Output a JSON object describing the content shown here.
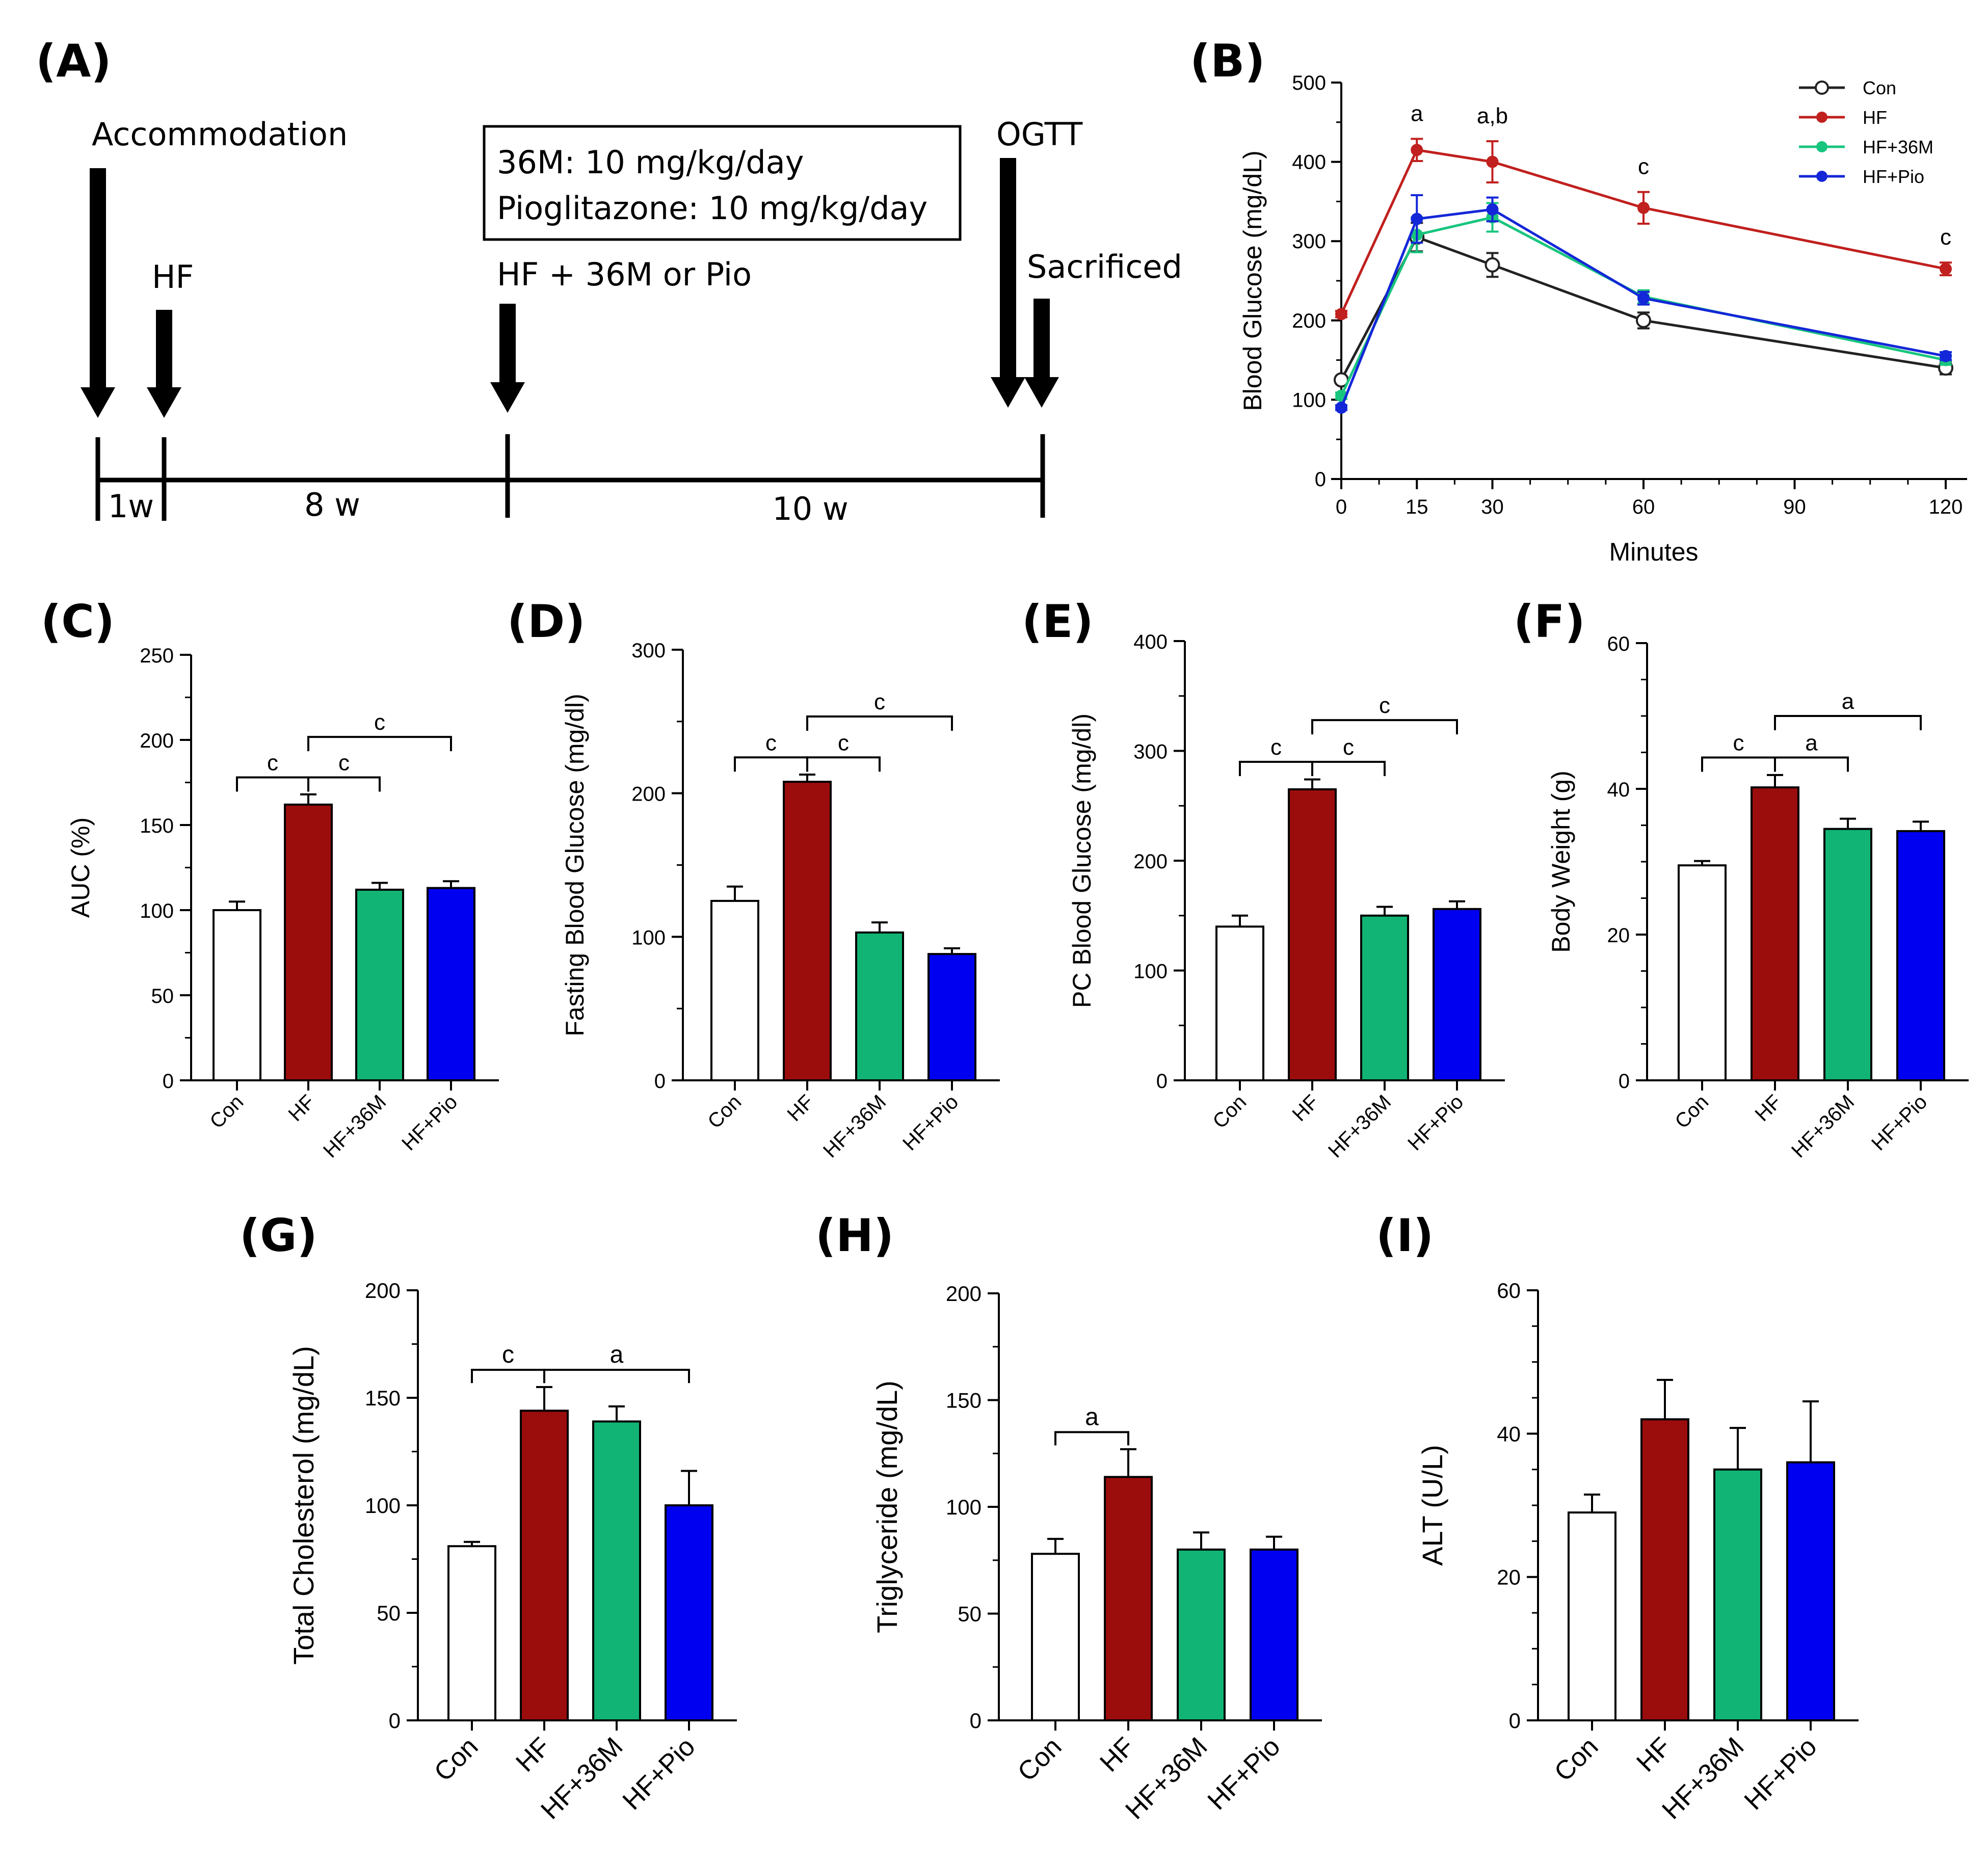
{
  "colors": {
    "con": "#ffffff",
    "hf": "#9b0d0d",
    "hf36m": "#11b474",
    "hfpio": "#0000f0",
    "line_con": "#222222",
    "line_hf": "#c0201e",
    "line_hf36m": "#18c57e",
    "line_hfpio": "#1427d8"
  },
  "panelA": {
    "label": "(A)",
    "events": {
      "accommodation": "Accommodation",
      "hf": "HF",
      "treatment": "HF + 36M or Pio",
      "ogtt": "OGTT",
      "sacrificed": "Sacrificed"
    },
    "box": {
      "line1": "36M: 10 mg/kg/day",
      "line2": "Pioglitazone: 10 mg/kg/day"
    },
    "durations": {
      "d1": "1w",
      "d2": "8 w",
      "d3": "10 w"
    }
  },
  "chart_data": [
    {
      "panel": "B",
      "label": "(B)",
      "type": "line",
      "xlabel": "Minutes",
      "ylabel": "Blood Glucose (mg/dL)",
      "x": [
        0,
        15,
        30,
        60,
        120
      ],
      "xticks": [
        "0",
        "15",
        "30",
        "60",
        "90",
        "120"
      ],
      "xtick_values": [
        0,
        15,
        30,
        60,
        90,
        120
      ],
      "xlim": [
        0,
        120
      ],
      "ylim": [
        0,
        500
      ],
      "yticks": [
        "0",
        "100",
        "200",
        "300",
        "400",
        "500"
      ],
      "series": [
        {
          "name": "Con",
          "values": [
            125,
            305,
            270,
            200,
            140
          ],
          "errors": [
            5,
            18,
            15,
            10,
            8
          ],
          "marker": "open"
        },
        {
          "name": "HF",
          "values": [
            208,
            415,
            400,
            342,
            265
          ],
          "errors": [
            4,
            14,
            26,
            20,
            8
          ],
          "marker": "filled"
        },
        {
          "name": "HF+36M",
          "values": [
            105,
            308,
            330,
            230,
            150
          ],
          "errors": [
            4,
            22,
            18,
            8,
            6
          ],
          "marker": "filled"
        },
        {
          "name": "HF+Pio",
          "values": [
            90,
            328,
            340,
            228,
            155
          ],
          "errors": [
            3,
            30,
            15,
            8,
            5
          ],
          "marker": "filled"
        }
      ],
      "annotations": [
        {
          "x": 15,
          "text": "a"
        },
        {
          "x": 30,
          "text": "a,b"
        },
        {
          "x": 60,
          "text": "c"
        },
        {
          "x": 120,
          "text": "c"
        }
      ],
      "legend_position": "top-right"
    },
    {
      "panel": "C",
      "label": "(C)",
      "type": "bar",
      "categories": [
        "Con",
        "HF",
        "HF+36M",
        "HF+Pio"
      ],
      "values": [
        100,
        162,
        112,
        113
      ],
      "errors": [
        5,
        6,
        4,
        4
      ],
      "ylabel": "AUC (%)",
      "ylim": [
        0,
        250
      ],
      "yticks": [
        "0",
        "50",
        "100",
        "150",
        "200",
        "250"
      ],
      "significance": [
        {
          "from": 0,
          "to": 1,
          "text": "c",
          "level": 1
        },
        {
          "from": 1,
          "to": 2,
          "text": "c",
          "level": 1
        },
        {
          "from": 1,
          "to": 3,
          "text": "c",
          "level": 2
        }
      ]
    },
    {
      "panel": "D",
      "label": "(D)",
      "type": "bar",
      "categories": [
        "Con",
        "HF",
        "HF+36M",
        "HF+Pio"
      ],
      "values": [
        125,
        208,
        103,
        88
      ],
      "errors": [
        10,
        5,
        7,
        4
      ],
      "ylabel": "Fasting Blood Glucose (mg/dl)",
      "ylim": [
        0,
        300
      ],
      "yticks": [
        "0",
        "100",
        "200",
        "300"
      ],
      "significance": [
        {
          "from": 0,
          "to": 1,
          "text": "c",
          "level": 1
        },
        {
          "from": 1,
          "to": 2,
          "text": "c",
          "level": 1
        },
        {
          "from": 1,
          "to": 3,
          "text": "c",
          "level": 2
        }
      ]
    },
    {
      "panel": "E",
      "label": "(E)",
      "type": "bar",
      "categories": [
        "Con",
        "HF",
        "HF+36M",
        "HF+Pio"
      ],
      "values": [
        140,
        265,
        150,
        156
      ],
      "errors": [
        10,
        9,
        8,
        7
      ],
      "ylabel": "PC Blood Glucose (mg/dl)",
      "ylim": [
        0,
        400
      ],
      "yticks": [
        "0",
        "100",
        "200",
        "300",
        "400"
      ],
      "significance": [
        {
          "from": 0,
          "to": 1,
          "text": "c",
          "level": 1
        },
        {
          "from": 1,
          "to": 2,
          "text": "c",
          "level": 1
        },
        {
          "from": 1,
          "to": 3,
          "text": "c",
          "level": 2
        }
      ]
    },
    {
      "panel": "F",
      "label": "(F)",
      "type": "bar",
      "categories": [
        "Con",
        "HF",
        "HF+36M",
        "HF+Pio"
      ],
      "values": [
        29.5,
        40.2,
        34.5,
        34.2
      ],
      "errors": [
        0.6,
        1.7,
        1.4,
        1.3
      ],
      "ylabel": "Body Weight (g)",
      "ylim": [
        0,
        60
      ],
      "yticks": [
        "0",
        "20",
        "40",
        "60"
      ],
      "significance": [
        {
          "from": 0,
          "to": 1,
          "text": "c",
          "level": 1
        },
        {
          "from": 1,
          "to": 2,
          "text": "a",
          "level": 1
        },
        {
          "from": 1,
          "to": 3,
          "text": "a",
          "level": 2
        }
      ]
    },
    {
      "panel": "G",
      "label": "(G)",
      "type": "bar",
      "categories": [
        "Con",
        "HF",
        "HF+36M",
        "HF+Pio"
      ],
      "values": [
        81,
        144,
        139,
        100
      ],
      "errors": [
        2,
        11,
        7,
        16
      ],
      "ylabel": "Total Cholesterol (mg/dL)",
      "ylim": [
        0,
        200
      ],
      "yticks": [
        "0",
        "50",
        "100",
        "150",
        "200"
      ],
      "significance": [
        {
          "from": 0,
          "to": 1,
          "text": "c",
          "level": 1
        },
        {
          "from": 1,
          "to": 3,
          "text": "a",
          "level": 1
        }
      ]
    },
    {
      "panel": "H",
      "label": "(H)",
      "type": "bar",
      "categories": [
        "Con",
        "HF",
        "HF+36M",
        "HF+Pio"
      ],
      "values": [
        78,
        114,
        80,
        80
      ],
      "errors": [
        7,
        13,
        8,
        6
      ],
      "ylabel": "Triglyceride (mg/dL)",
      "ylim": [
        0,
        200
      ],
      "yticks": [
        "0",
        "50",
        "100",
        "150",
        "200"
      ],
      "significance": [
        {
          "from": 0,
          "to": 1,
          "text": "a",
          "level": 1
        }
      ]
    },
    {
      "panel": "I",
      "label": "(I)",
      "type": "bar",
      "categories": [
        "Con",
        "HF",
        "HF+36M",
        "HF+Pio"
      ],
      "values": [
        29,
        42,
        35,
        36
      ],
      "errors": [
        2.5,
        5.5,
        5.8,
        8.5
      ],
      "ylabel": "ALT (U/L)",
      "ylim": [
        0,
        60
      ],
      "yticks": [
        "0",
        "20",
        "40",
        "60"
      ],
      "significance": []
    }
  ]
}
